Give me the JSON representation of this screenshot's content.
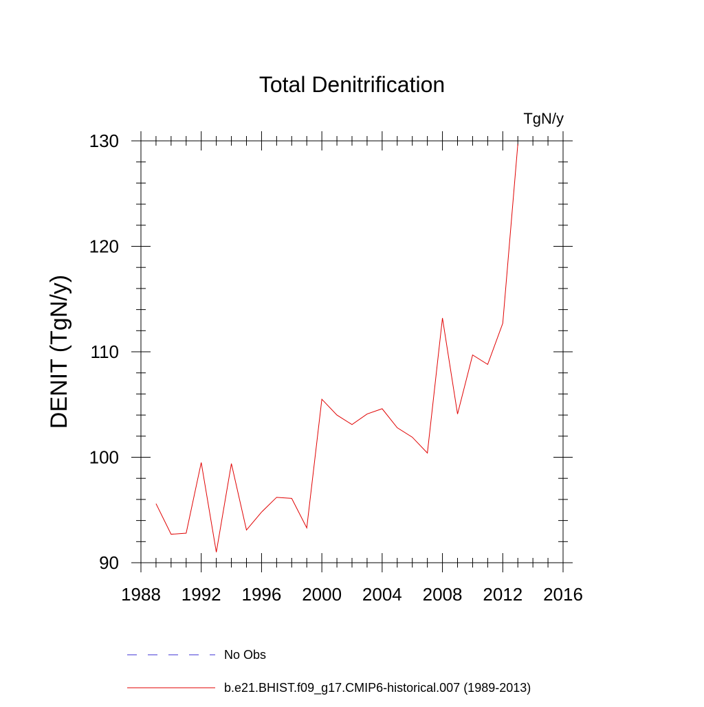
{
  "chart_data": {
    "type": "line",
    "title": "Total Denitrification",
    "units_label": "TgN/y",
    "xlabel": "",
    "ylabel": "DENIT  (TgN/y)",
    "xlim": [
      1988,
      2016
    ],
    "ylim": [
      90,
      130
    ],
    "x_ticks": [
      1988,
      1992,
      1996,
      2000,
      2004,
      2008,
      2012,
      2016
    ],
    "y_ticks": [
      90,
      100,
      110,
      120,
      130
    ],
    "grid": false,
    "legend_placement": "bottom",
    "series": [
      {
        "name": "b.e21.BHIST.f09_g17.CMIP6-historical.007 (1989-2013)",
        "color": "#e00000",
        "style": "solid",
        "x": [
          1989,
          1990,
          1991,
          1992,
          1993,
          1994,
          1995,
          1996,
          1997,
          1998,
          1999,
          2000,
          2001,
          2002,
          2003,
          2004,
          2005,
          2006,
          2007,
          2008,
          2009,
          2010,
          2011,
          2012,
          2013
        ],
        "y": [
          95.6,
          92.7,
          92.8,
          99.5,
          91.0,
          99.4,
          93.1,
          94.8,
          96.2,
          96.1,
          93.3,
          105.5,
          104.0,
          103.1,
          104.1,
          104.6,
          102.8,
          101.9,
          100.4,
          113.2,
          104.1,
          109.7,
          108.8,
          112.7,
          129.7
        ]
      }
    ],
    "legend": [
      {
        "label": "No Obs",
        "color": "#3b2fd4",
        "style": "dashed"
      },
      {
        "label": "b.e21.BHIST.f09_g17.CMIP6-historical.007 (1989-2013)",
        "color": "#e00000",
        "style": "solid"
      }
    ]
  }
}
